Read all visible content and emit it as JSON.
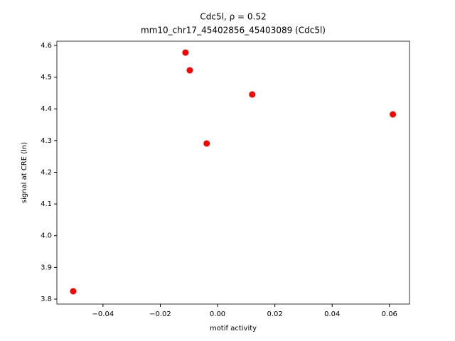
{
  "chart_data": {
    "type": "scatter",
    "title": "Cdc5l, ρ = 0.52",
    "subtitle": "mm10_chr17_45402856_45403089 (Cdc5l)",
    "x_label": "motif activity",
    "y_label": "signal at CRE (ln)",
    "color": "#ff0000",
    "x": [
      -0.0504,
      -0.0112,
      -0.0097,
      -0.0038,
      0.0121,
      0.0612
    ],
    "values": [
      3.8247,
      4.5776,
      4.5216,
      4.2908,
      4.4454,
      4.3826
    ],
    "xlim": [
      -0.0561,
      0.067
    ],
    "ylim": [
      3.7843,
      4.6134
    ],
    "xticks": [
      {
        "value": -0.04,
        "label": "−0.04"
      },
      {
        "value": -0.02,
        "label": "−0.02"
      },
      {
        "value": 0,
        "label": "0.00"
      },
      0.02,
      0.04,
      0.06
    ],
    "yticks": [
      3.8,
      3.9,
      {
        "value": 4.0,
        "label": "4.0"
      },
      4.1,
      4.2,
      4.3,
      4.4,
      4.5,
      4.6
    ]
  }
}
